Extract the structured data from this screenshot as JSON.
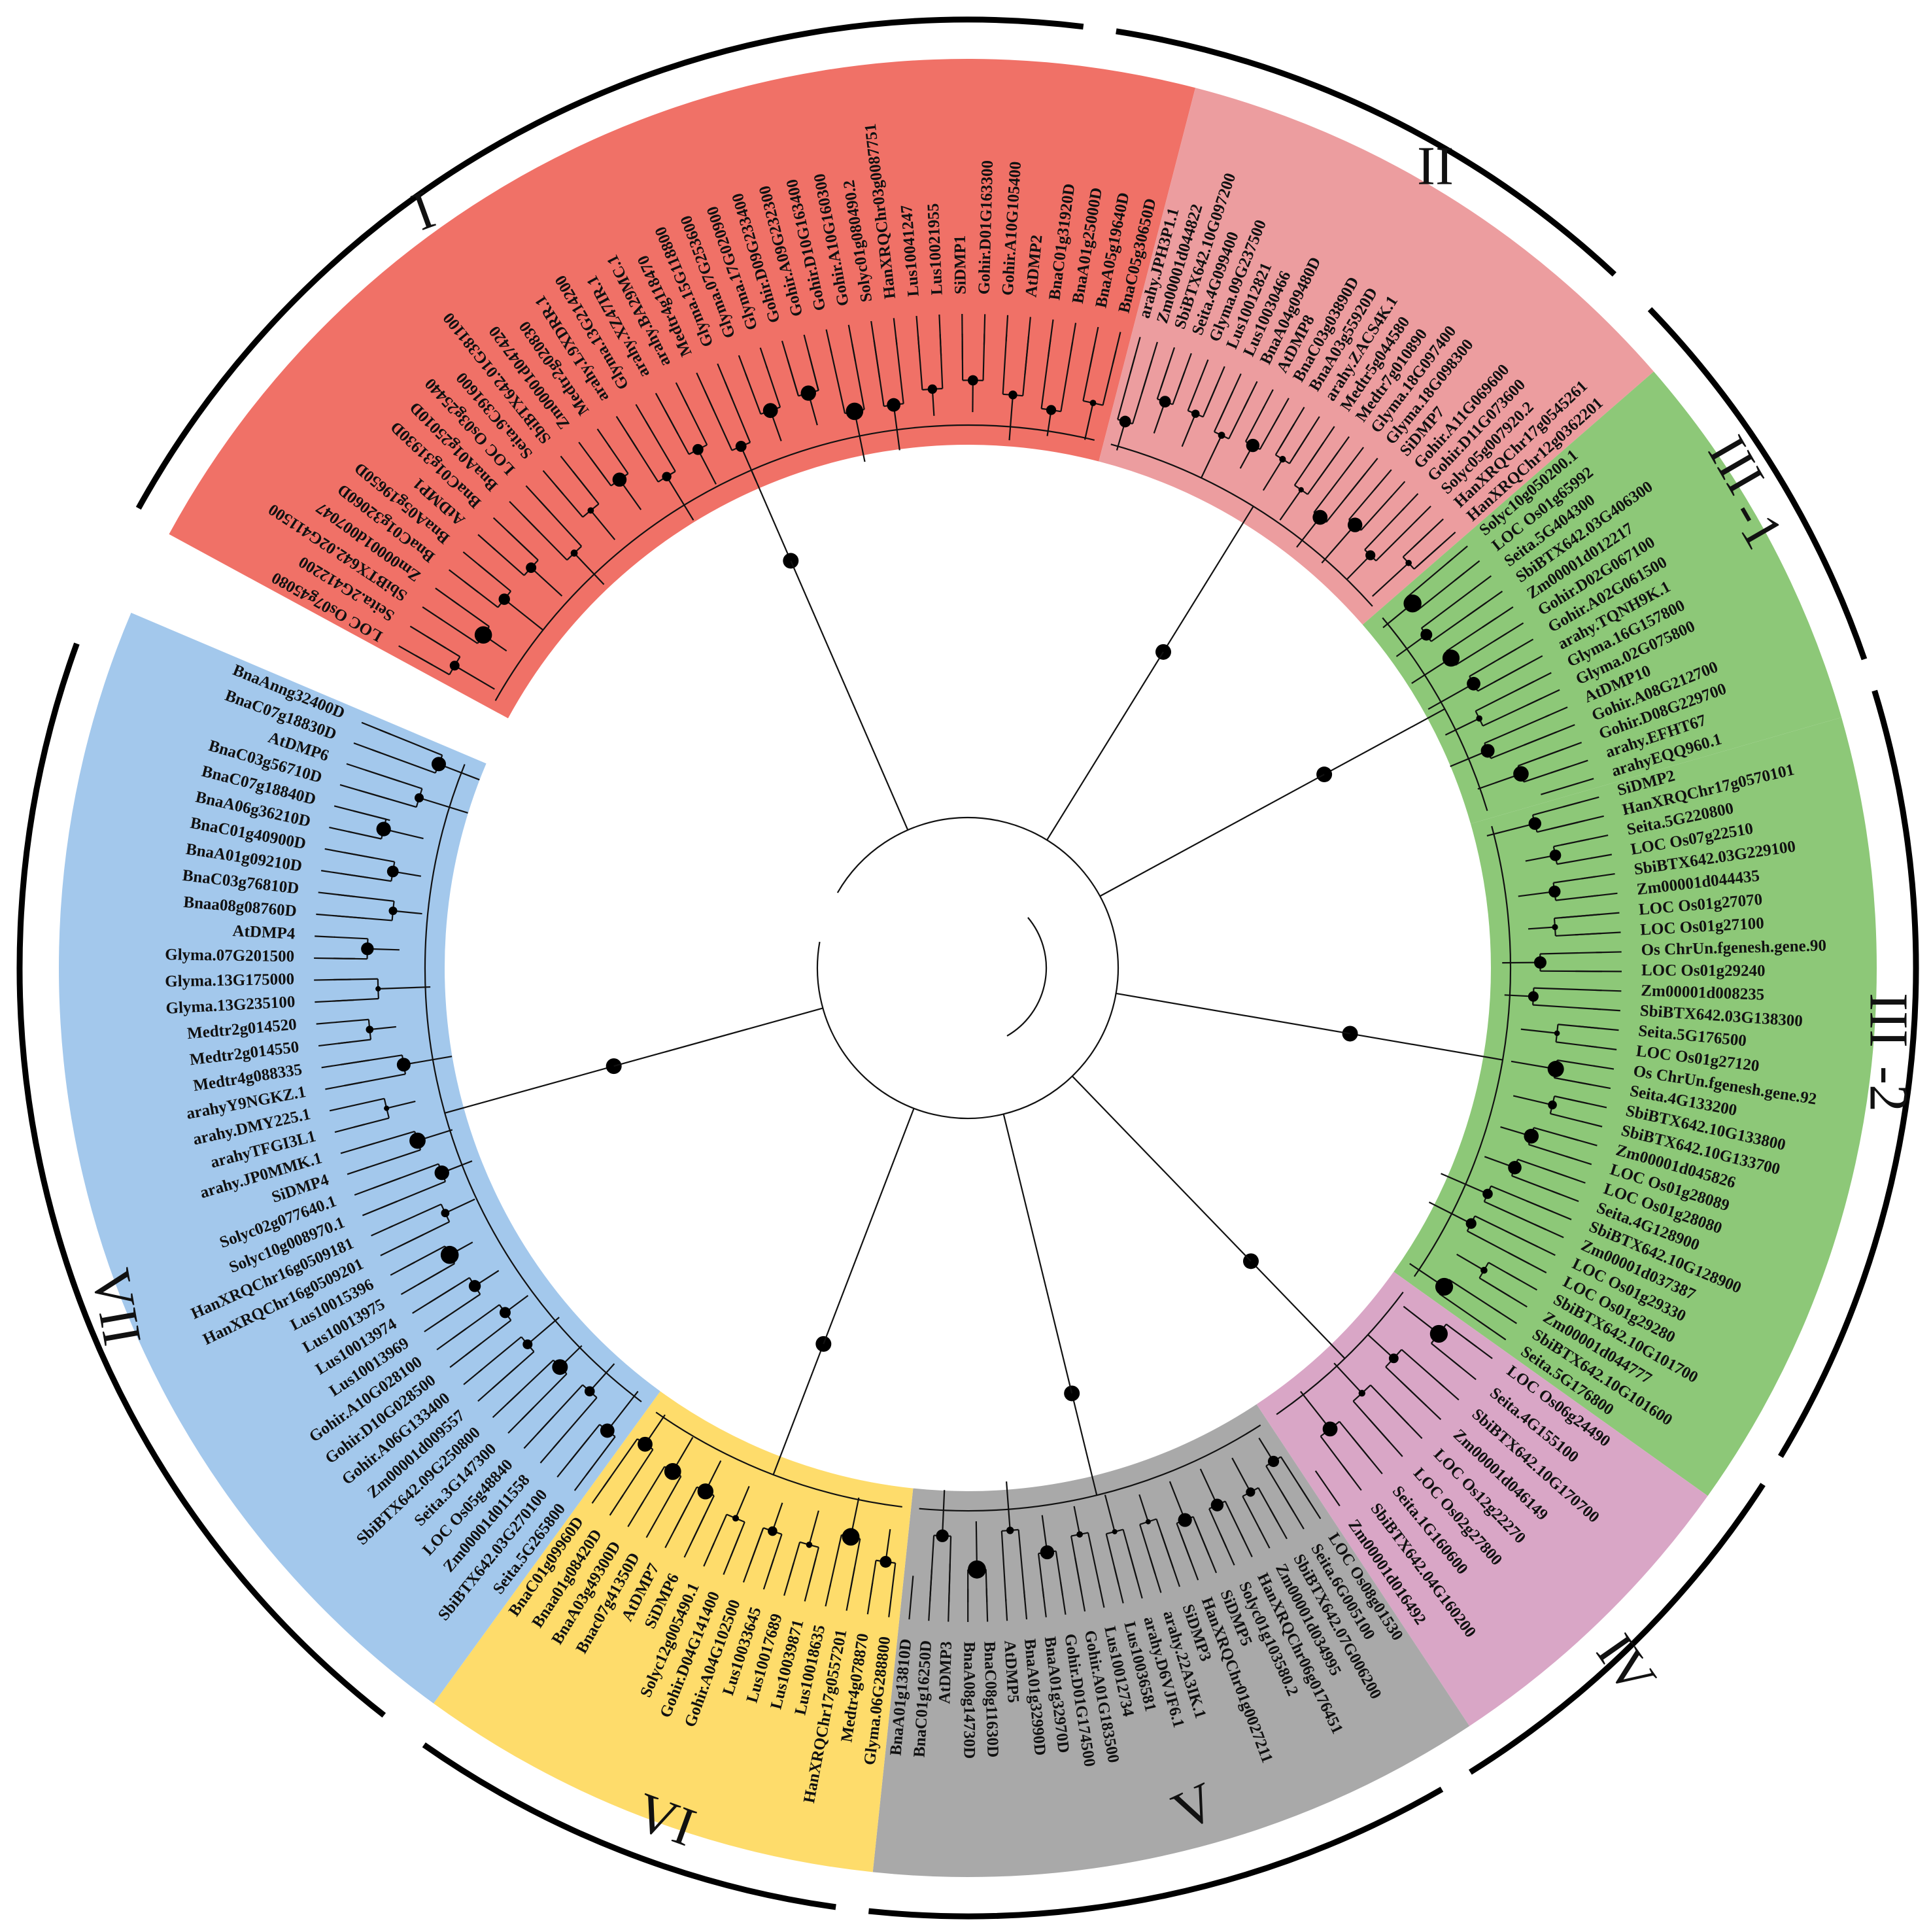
{
  "clades": [
    {
      "label": "I",
      "color": "#f07167",
      "leaves": [
        "LOC Os07g45080",
        "Seita.2G412200",
        "SbiBTX642.02G411500",
        "Zm00001d007047",
        "BnaC01g32060D",
        "BnaA05g19650D",
        "AtDMP1",
        "BnaC01g31930D",
        "BnaA01g25010D",
        "LOC Os03g25440",
        "Seita.9C391600",
        "SbiBTX642.01G381100",
        "Zm00001d047420",
        "Medtr2g020830",
        "arahy.L9XDRR.1",
        "Glyma.13G214200",
        "arahy.XZ47IR.1",
        "arahy.BA29MC.1",
        "Medtr4g118470",
        "Glyma.15G118800",
        "Glyma.07G253600",
        "Glyma.17G020900",
        "Gohir.D09G233400",
        "Gohir.A09G232300",
        "Gohir.D10G163400",
        "Gohir.A10G160300",
        "Solyc01g080490.2",
        "HanXRQChr03g0087751",
        "Lus10041247",
        "Lus10021955",
        "SiDMP1",
        "Gohir.D01G163300",
        "Gohir.A10G105400",
        "AtDMP2",
        "BnaC01g31920D",
        "BnaA01g25000D",
        "BnaA05g19640D",
        "BnaC05g30650D"
      ]
    },
    {
      "label": "II",
      "color": "#ec9d9f",
      "leaves": [
        "arahy.JPH3P1.1",
        "Zm00001d044822",
        "SbiBTX642.10G097200",
        "Seita.4G099400",
        "Glyma.09G237500",
        "Lus10012821",
        "Lus10030466",
        "BnaA04g09480D",
        "AtDMP8",
        "BnaC03g03890D",
        "BnaA03g55920D",
        "arahy.ZACS4K.1",
        "Medtr5g044580",
        "Medtr7g010890",
        "Glyma.18G097400",
        "Glyma.18G098300",
        "SiDMP7",
        "Gohir.A11G069600",
        "Gohir.D11G073600",
        "Solyc05g007920.2",
        "HanXRQChr17g0545261",
        "HanXRQChr12g0362201"
      ]
    },
    {
      "label": "III-1",
      "color": "#8dc878",
      "leaves": [
        "Solyc10g050200.1",
        "LOC Os01g65992",
        "Seita.5G404300",
        "SbiBTX642.03G406300",
        "Zm00001d012217",
        "Gohir.D02G067100",
        "Gohir.A02G061500",
        "arahy.TQNH9K.1",
        "Glyma.16G157800",
        "Glyma.02G075800",
        "AtDMP10",
        "Gohir.A08G212700",
        "Gohir.D08G229700",
        "arahy.EFHT67",
        "arahyEQQ960.1"
      ]
    },
    {
      "label": "III-2",
      "color": "#8dc878",
      "leaves": [
        "SiDMP2",
        "HanXRQChr17g0570101",
        "Seita.5G220800",
        "LOC Os07g22510",
        "SbiBTX642.03G229100",
        "Zm00001d044435",
        "LOC Os01g27070",
        "LOC Os01g27100",
        "Os ChrUn.fgenesh.gene.90",
        "LOC Os01g29240",
        "Zm00001d008235",
        "SbiBTX642.03G138300",
        "Seita.5G176500",
        "LOC Os01g27120",
        "Os ChrUn.fgenesh.gene.92",
        "Seita.4G133200",
        "SbiBTX642.10G133800",
        "SbiBTX642.10G133700",
        "Zm00001d045826",
        "LOC Os01g28089",
        "LOC Os01g28080",
        "Seita.4G128900",
        "SbiBTX642.10G128900",
        "Zm00001d037387",
        "LOC Os01g29330",
        "LOC Os01g29280",
        "SbiBTX642.10G101700",
        "Zm00001d044777",
        "SbiBTX642.10G101600",
        "Seita.5G176800"
      ]
    },
    {
      "label": "IV",
      "color": "#d9a6c6",
      "leaves": [
        "LOC Os06g24490",
        "Seita.4G155100",
        "SbiBTX642.10G170700",
        "Zm00001d046149",
        "LOC Os12g22270",
        "LOC Os02g27800",
        "Seita.1G160600",
        "SbiBTX642.04G160200",
        "Zm00001d016492"
      ]
    },
    {
      "label": "V",
      "color": "#a9a9a9",
      "leaves": [
        "LOC Os08g01530",
        "Seita.6G005100",
        "SbiBTX642.07G006200",
        "Zm00001d034995",
        "HanXRQChr06g0176451",
        "Solyc01g103580.2",
        "SiDMP5",
        "HanXRQChr01g0027211",
        "SiDMP3",
        "arahy.22A3IK.1",
        "arahy.D6VJF6.1",
        "Lus10036581",
        "Lus10012734",
        "Gohir.A01G183500",
        "Gohir.D01G174500",
        "BnaA01g32970D",
        "BnaA01g32990D",
        "AtDMP5",
        "BnaC08g11630D",
        "BnaA08g14730D",
        "AtDMP3",
        "BnaC01g16250D",
        "BnaA01g13810D"
      ]
    },
    {
      "label": "VI",
      "color": "#fedc6b",
      "leaves": [
        "Glyma.06G288800",
        "Medtr4g078870",
        "HanXRQChr17g0557201",
        "Lus10018635",
        "Lus10039871",
        "Lus10017689",
        "Lus10033645",
        "Gohir.A04G102500",
        "Gohir.D04G141400",
        "Solyc12g005490.1",
        "SiDMP6",
        "AtDMP7",
        "Bnac07g41350D",
        "BnaA03g49300D",
        "Bnaa01g08420D",
        "BnaC01g09960D"
      ]
    },
    {
      "label": "VII",
      "color": "#a3c8ec",
      "leaves": [
        "Seita.5G265800",
        "SbiBTX642.03G270100",
        "Zm00001d011558",
        "LOC Os05g48840",
        "Seita.3G147300",
        "SbiBTX642.09G250800",
        "Zm00001d009557",
        "Gohir.A06G133400",
        "Gohir.D10G028500",
        "Gohir.A10G028100",
        "Lus10013969",
        "Lus10013974",
        "Lus10013975",
        "Lus10015396",
        "HanXRQChr16g0509201",
        "HanXRQChr16g0509181",
        "Solyc10g008970.1",
        "Solyc02g077640.1",
        "SiDMP4",
        "arahy.JP0MMK.1",
        "arahyTFGI3L1",
        "arahy.DMY225.1",
        "arahyY9NGKZ.1",
        "Medtr4g088335",
        "Medtr2g014550",
        "Medtr2g014520",
        "Glyma.13G235100",
        "Glyma.13G175000",
        "Glyma.07G201500",
        "AtDMP4",
        "Bnaa08g08760D",
        "BnaC03g76810D",
        "BnaA01g09210D",
        "BnaC01g40900D",
        "BnaA06g36210D",
        "BnaC07g18840D",
        "BnaC03g56710D",
        "AtDMP6",
        "BnaC07g18830D",
        "BnaAnng32400D"
      ]
    }
  ]
}
